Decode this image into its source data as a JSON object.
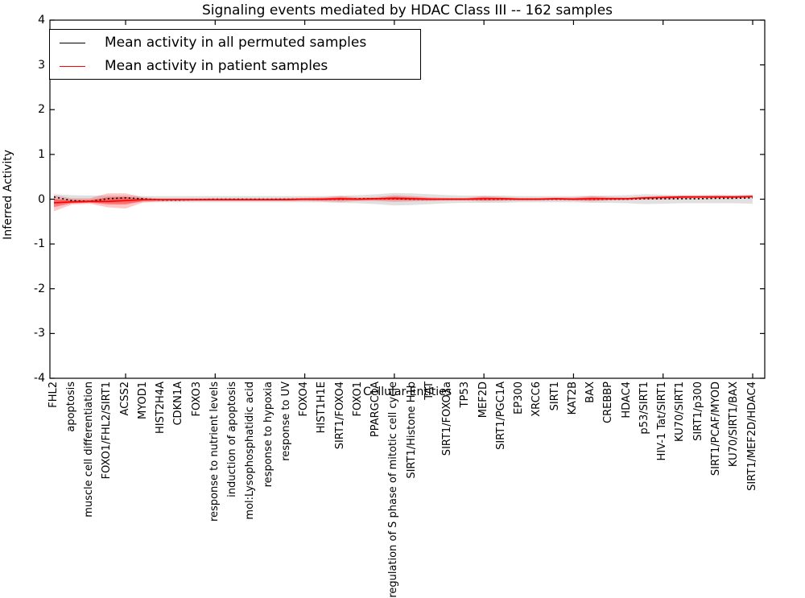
{
  "chart_data": {
    "type": "line",
    "title": "Signaling events mediated by HDAC Class III -- 162 samples",
    "xlabel": "Cellular Entities",
    "ylabel": "Inferred Activity",
    "ylim": [
      -4,
      4
    ],
    "yticks": [
      4,
      3,
      2,
      1,
      0,
      -1,
      -2,
      -3,
      -4
    ],
    "grid": false,
    "legend_position": "upper left",
    "x_major_tick_indices": [
      4,
      9,
      14,
      19,
      24,
      29,
      34,
      39
    ],
    "categories": [
      "FHL2",
      "apoptosis",
      "muscle cell differentiation",
      "FOXO1/FHL2/SIRT1",
      "ACSS2",
      "MYOD1",
      "HIST2H4A",
      "CDKN1A",
      "FOXO3",
      "response to nutrient levels",
      "induction of apoptosis",
      "mol:Lysophosphatidic acid",
      "response to hypoxia",
      "response to UV",
      "FOXO4",
      "HIST1H1E",
      "SIRT1/FOXO4",
      "FOXO1",
      "PPARGC1A",
      "regulation of S phase of mitotic cell cycle",
      "SIRT1/Histone H1b",
      "TAT",
      "SIRT1/FOXO3a",
      "TP53",
      "MEF2D",
      "SIRT1/PGC1A",
      "EP300",
      "XRCC6",
      "SIRT1",
      "KAT2B",
      "BAX",
      "CREBBP",
      "HDAC4",
      "p53/SIRT1",
      "HIV-1 Tat/SIRT1",
      "KU70/SIRT1",
      "SIRT1/p300",
      "SIRT1/PCAF/MYOD",
      "KU70/SIRT1/BAX",
      "SIRT1/MEF2D/HDAC4"
    ],
    "series": [
      {
        "name": "Mean activity in all permuted samples",
        "color": "#000000",
        "style": "dotted",
        "values": [
          0.05,
          -0.03,
          -0.05,
          0.01,
          0.03,
          0.01,
          -0.02,
          -0.02,
          -0.01,
          0.0,
          0.0,
          0.0,
          0.0,
          0.0,
          0.0,
          0.0,
          0.0,
          0.01,
          0.01,
          0.01,
          0.0,
          0.0,
          0.0,
          0.0,
          0.0,
          0.0,
          0.0,
          0.0,
          0.0,
          0.0,
          0.0,
          0.0,
          0.0,
          0.01,
          0.01,
          0.01,
          0.01,
          0.02,
          0.02,
          0.03
        ]
      },
      {
        "name": "Mean activity in patient samples",
        "color": "#ff0000",
        "style": "solid",
        "values": [
          -0.08,
          -0.06,
          -0.05,
          -0.05,
          -0.03,
          -0.01,
          -0.01,
          -0.01,
          -0.01,
          -0.01,
          -0.01,
          -0.01,
          -0.01,
          -0.01,
          0.0,
          0.0,
          0.01,
          0.0,
          0.01,
          0.02,
          0.01,
          0.0,
          0.0,
          0.0,
          0.01,
          0.01,
          0.0,
          0.0,
          0.01,
          0.0,
          0.01,
          0.01,
          0.01,
          0.03,
          0.04,
          0.05,
          0.05,
          0.05,
          0.05,
          0.06
        ]
      }
    ],
    "bands": {
      "patient_hi": [
        0.09,
        0.02,
        0.02,
        0.13,
        0.13,
        0.04,
        0.02,
        0.02,
        0.02,
        0.02,
        0.02,
        0.02,
        0.02,
        0.03,
        0.03,
        0.04,
        0.07,
        0.04,
        0.05,
        0.09,
        0.07,
        0.04,
        0.03,
        0.03,
        0.07,
        0.05,
        0.03,
        0.03,
        0.04,
        0.04,
        0.07,
        0.05,
        0.04,
        0.06,
        0.07,
        0.08,
        0.08,
        0.09,
        0.08,
        0.09
      ],
      "patient_lo": [
        -0.27,
        -0.12,
        -0.1,
        -0.18,
        -0.21,
        -0.07,
        -0.05,
        -0.04,
        -0.04,
        -0.04,
        -0.04,
        -0.04,
        -0.04,
        -0.04,
        -0.04,
        -0.05,
        -0.06,
        -0.04,
        -0.04,
        -0.06,
        -0.05,
        -0.04,
        -0.03,
        -0.03,
        -0.05,
        -0.04,
        -0.03,
        -0.03,
        -0.03,
        -0.03,
        -0.05,
        -0.03,
        -0.02,
        -0.01,
        0.0,
        0.01,
        0.02,
        0.02,
        0.02,
        0.03
      ],
      "permuted_hi": [
        0.11,
        0.09,
        0.08,
        0.08,
        0.08,
        0.07,
        0.07,
        0.07,
        0.07,
        0.07,
        0.07,
        0.07,
        0.07,
        0.07,
        0.07,
        0.07,
        0.08,
        0.09,
        0.11,
        0.14,
        0.13,
        0.11,
        0.09,
        0.08,
        0.08,
        0.08,
        0.07,
        0.07,
        0.07,
        0.07,
        0.08,
        0.08,
        0.09,
        0.11,
        0.1,
        0.09,
        0.09,
        0.09,
        0.09,
        0.1
      ],
      "permuted_lo": [
        -0.11,
        -0.09,
        -0.08,
        -0.08,
        -0.08,
        -0.07,
        -0.07,
        -0.07,
        -0.07,
        -0.07,
        -0.07,
        -0.07,
        -0.07,
        -0.07,
        -0.07,
        -0.07,
        -0.08,
        -0.09,
        -0.11,
        -0.14,
        -0.13,
        -0.11,
        -0.09,
        -0.08,
        -0.08,
        -0.08,
        -0.07,
        -0.07,
        -0.07,
        -0.07,
        -0.08,
        -0.08,
        -0.09,
        -0.11,
        -0.1,
        -0.09,
        -0.09,
        -0.09,
        -0.09,
        -0.1
      ]
    },
    "colors": {
      "permuted_band": "rgba(0,0,0,0.12)",
      "patient_band_outer": "rgba(255,0,0,0.22)",
      "patient_band_inner": "rgba(255,0,0,0.38)",
      "frame": "#000000"
    }
  }
}
